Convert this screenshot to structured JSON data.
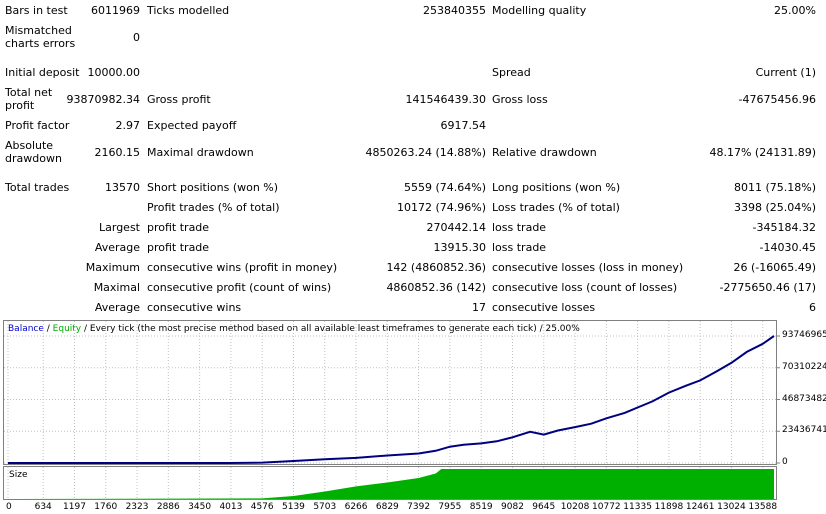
{
  "report": {
    "bars_in_test_label": "Bars in test",
    "bars_in_test_value": "6011969",
    "ticks_modelled_label": "Ticks modelled",
    "ticks_modelled_value": "253840355",
    "modelling_quality_label": "Modelling quality",
    "modelling_quality_value": "25.00%",
    "mismatched_label": "Mismatched charts errors",
    "mismatched_value": "0",
    "initial_deposit_label": "Initial deposit",
    "initial_deposit_value": "10000.00",
    "spread_label": "Spread",
    "spread_value": "Current (1)",
    "total_net_profit_label": "Total net profit",
    "total_net_profit_value": "93870982.34",
    "gross_profit_label": "Gross profit",
    "gross_profit_value": "141546439.30",
    "gross_loss_label": "Gross loss",
    "gross_loss_value": "-47675456.96",
    "profit_factor_label": "Profit factor",
    "profit_factor_value": "2.97",
    "expected_payoff_label": "Expected payoff",
    "expected_payoff_value": "6917.54",
    "absolute_drawdown_label": "Absolute drawdown",
    "absolute_drawdown_value": "2160.15",
    "maximal_drawdown_label": "Maximal drawdown",
    "maximal_drawdown_value": "4850263.24 (14.88%)",
    "relative_drawdown_label": "Relative drawdown",
    "relative_drawdown_value": "48.17% (24131.89)",
    "total_trades_label": "Total trades",
    "total_trades_value": "13570",
    "short_positions_label": "Short positions (won %)",
    "short_positions_value": "5559 (74.64%)",
    "long_positions_label": "Long positions (won %)",
    "long_positions_value": "8011 (75.18%)",
    "profit_trades_label": "Profit trades (% of total)",
    "profit_trades_value": "10172 (74.96%)",
    "loss_trades_label": "Loss trades (% of total)",
    "loss_trades_value": "3398 (25.04%)",
    "largest_label": "Largest",
    "largest_profit_label": "profit trade",
    "largest_profit_value": "270442.14",
    "largest_loss_label": "loss trade",
    "largest_loss_value": "-345184.32",
    "average_label": "Average",
    "average_profit_label": "profit trade",
    "average_profit_value": "13915.30",
    "average_loss_label": "loss trade",
    "average_loss_value": "-14030.45",
    "maximum_label": "Maximum",
    "max_cons_wins_label": "consecutive wins (profit in money)",
    "max_cons_wins_value": "142 (4860852.36)",
    "max_cons_losses_label": "consecutive losses (loss in money)",
    "max_cons_losses_value": "26 (-16065.49)",
    "maximal_label": "Maximal",
    "maximal_cons_profit_label": "consecutive profit (count of wins)",
    "maximal_cons_profit_value": "4860852.36 (142)",
    "maximal_cons_loss_label": "consecutive loss (count of losses)",
    "maximal_cons_loss_value": "-2775650.46 (17)",
    "average2_label": "Average",
    "avg_cons_wins_label": "consecutive wins",
    "avg_cons_wins_value": "17",
    "avg_cons_losses_label": "consecutive losses",
    "avg_cons_losses_value": "6"
  },
  "legend": {
    "balance": "Balance",
    "sep": " / ",
    "equity": "Equity",
    "rest": " / Every tick (the most precise method based on all available least timeframes to generate each tick) / 25.00%"
  },
  "size_label": "Size",
  "colors": {
    "balance_line": "#000080",
    "size_fill": "#00b000",
    "grid": "#c0c0c0"
  },
  "chart_data": {
    "type": "line",
    "x": [
      0,
      634,
      1197,
      1760,
      2323,
      2886,
      3450,
      4013,
      4576,
      5139,
      5703,
      6266,
      6829,
      7392,
      7955,
      8519,
      9082,
      9645,
      10208,
      10772,
      11335,
      11898,
      12461,
      13024,
      13588
    ],
    "xticks": [
      "0",
      "634",
      "1197",
      "1760",
      "2323",
      "2886",
      "3450",
      "4013",
      "4576",
      "5139",
      "5703",
      "6266",
      "6829",
      "7392",
      "7955",
      "8519",
      "9082",
      "9645",
      "10208",
      "10772",
      "11335",
      "11898",
      "12461",
      "13024",
      "13588"
    ],
    "yticks": [
      "93746965",
      "70310224",
      "46873482",
      "23436741",
      "0"
    ],
    "ylim": [
      0,
      93746965
    ],
    "xlim": [
      0,
      13790
    ],
    "series": [
      {
        "name": "Balance",
        "x": [
          0,
          2000,
          4000,
          4576,
          5139,
          5703,
          6266,
          6829,
          7392,
          7700,
          7955,
          8200,
          8519,
          8800,
          9082,
          9400,
          9645,
          9900,
          10208,
          10500,
          10772,
          11100,
          11335,
          11600,
          11898,
          12200,
          12461,
          12750,
          13024,
          13300,
          13588,
          13790
        ],
        "values": [
          10000,
          10000,
          20000,
          300000,
          1500000,
          2800000,
          3800000,
          5500000,
          7000000,
          9000000,
          12000000,
          13500000,
          14500000,
          16000000,
          19000000,
          23000000,
          21000000,
          24000000,
          26500000,
          29000000,
          33000000,
          37000000,
          41000000,
          45500000,
          52000000,
          57000000,
          61000000,
          67500000,
          74000000,
          82000000,
          88000000,
          93746965
        ]
      }
    ],
    "size_series": {
      "name": "Size",
      "x": [
        0,
        4576,
        5139,
        5703,
        6266,
        6829,
        7392,
        7700,
        7800,
        7955,
        8519,
        13790
      ],
      "values": [
        0,
        0.02,
        0.1,
        0.25,
        0.42,
        0.55,
        0.7,
        0.85,
        1.0,
        1.0,
        1.0,
        1.0
      ]
    }
  }
}
